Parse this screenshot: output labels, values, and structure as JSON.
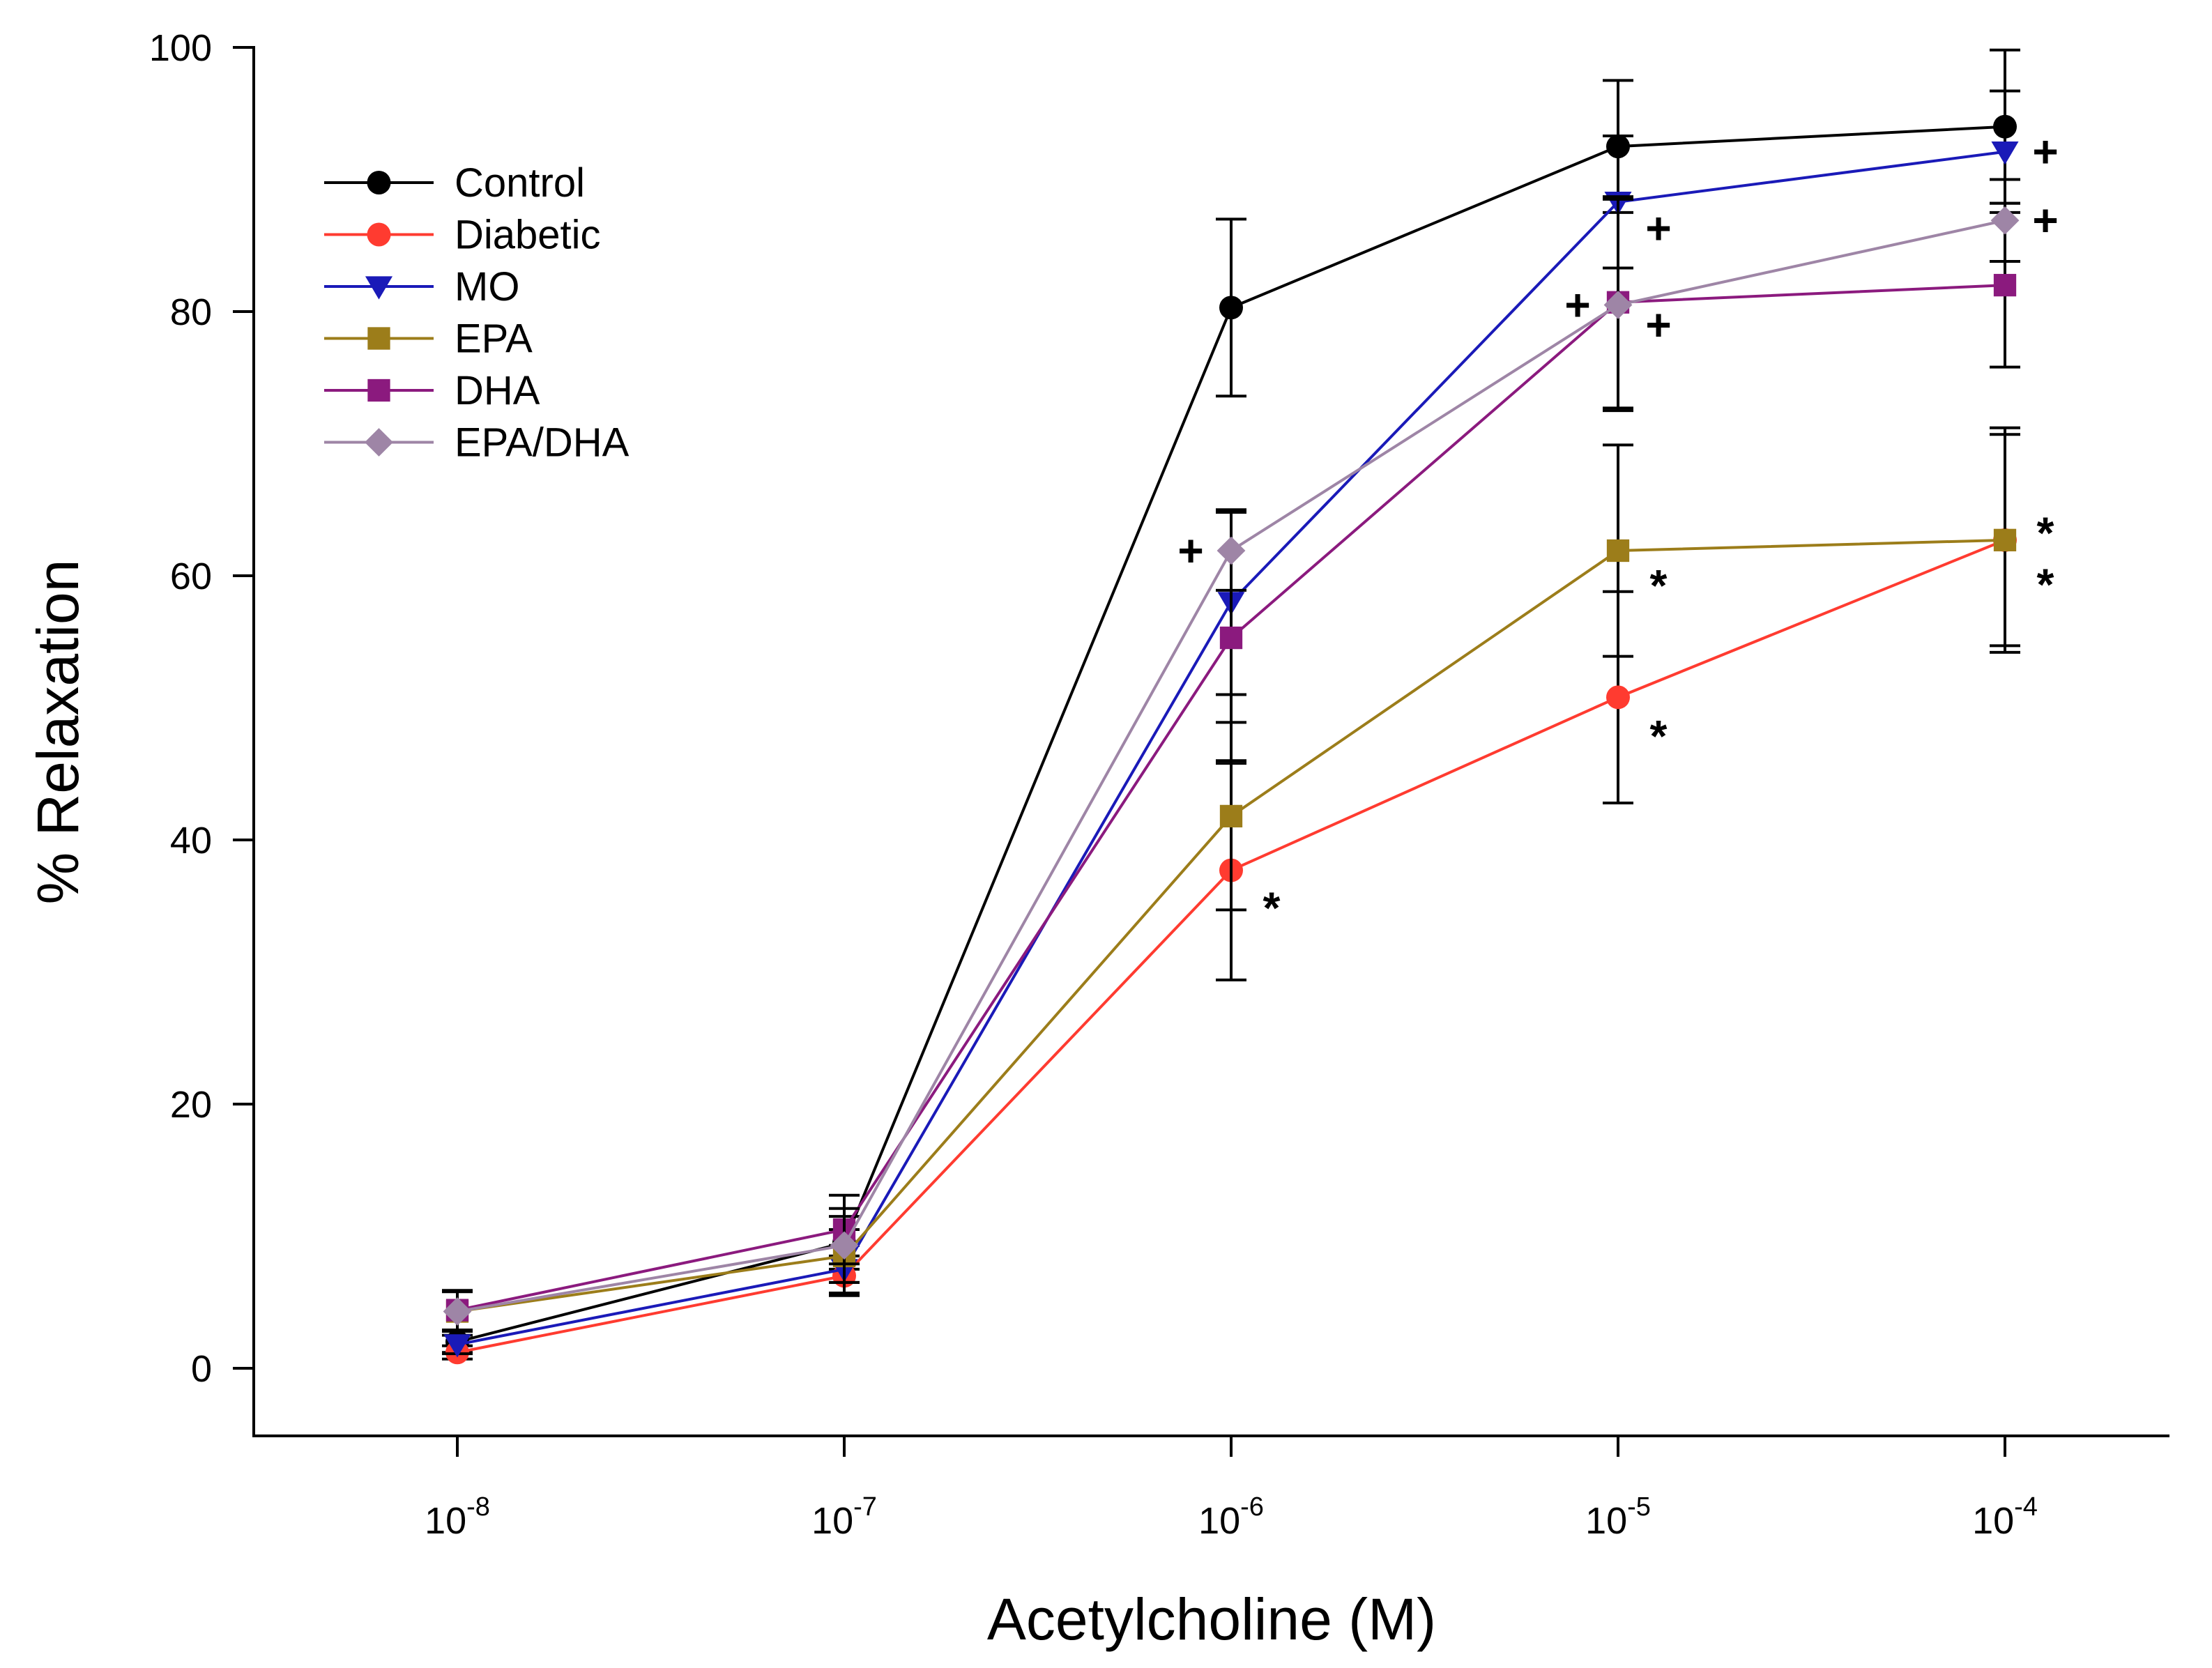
{
  "chart_data": {
    "type": "line",
    "title": "",
    "xlabel": "Acetylcholine (M)",
    "ylabel": "% Relaxation",
    "x_scale": "log",
    "x": [
      1e-08,
      1e-07,
      1e-06,
      1e-05,
      0.0001
    ],
    "x_tick_labels": [
      {
        "base": "10",
        "exp": "-8"
      },
      {
        "base": "10",
        "exp": "-7"
      },
      {
        "base": "10",
        "exp": "-6"
      },
      {
        "base": "10",
        "exp": "-5"
      },
      {
        "base": "10",
        "exp": "-4"
      }
    ],
    "ylim": [
      0,
      100
    ],
    "y_ticks": [
      0,
      20,
      40,
      60,
      80,
      100
    ],
    "grid": false,
    "legend_position": "top-left",
    "series": [
      {
        "name": "Control",
        "color": "#000000",
        "marker": "circle",
        "values": [
          2.0,
          9.5,
          80.3,
          92.5,
          94.0
        ],
        "errors": [
          0.8,
          2.0,
          6.7,
          5.0,
          5.8
        ]
      },
      {
        "name": "Diabetic",
        "color": "#ff3b30",
        "marker": "circle",
        "values": [
          1.2,
          7.0,
          37.7,
          50.8,
          62.7
        ],
        "errors": [
          0.5,
          1.5,
          8.3,
          8.0,
          8.0
        ]
      },
      {
        "name": "MO",
        "color": "#1a1ab8",
        "marker": "triangle-down",
        "values": [
          1.8,
          7.5,
          58.0,
          88.3,
          92.1
        ],
        "errors": [
          0.7,
          1.8,
          7.0,
          5.0,
          4.6
        ]
      },
      {
        "name": "EPA",
        "color": "#9c7d1a",
        "marker": "square",
        "values": [
          4.3,
          8.5,
          41.8,
          61.9,
          62.7
        ],
        "errors": [
          1.5,
          2.0,
          7.1,
          8.0,
          8.5
        ]
      },
      {
        "name": "DHA",
        "color": "#8b1a7e",
        "marker": "square",
        "values": [
          4.4,
          10.5,
          55.3,
          80.7,
          82.0
        ],
        "errors": [
          1.5,
          2.6,
          9.5,
          8.0,
          6.2
        ]
      },
      {
        "name": "EPA/DHA",
        "color": "#9e85a6",
        "marker": "diamond",
        "values": [
          4.3,
          9.3,
          61.9,
          80.5,
          86.9
        ],
        "errors": [
          1.5,
          2.8,
          3.0,
          8.0,
          3.1
        ]
      }
    ],
    "annotations": [
      {
        "text": "+",
        "x": 0.0001,
        "y": 92.1,
        "side": "right"
      },
      {
        "text": "+",
        "x": 1e-05,
        "y": 86.3,
        "side": "right"
      },
      {
        "text": "+",
        "x": 0.0001,
        "y": 86.9,
        "side": "right"
      },
      {
        "text": "+",
        "x": 1e-05,
        "y": 80.5,
        "side": "left"
      },
      {
        "text": "+",
        "x": 1e-05,
        "y": 79.0,
        "side": "right"
      },
      {
        "text": "+",
        "x": 1e-06,
        "y": 61.9,
        "side": "left"
      },
      {
        "text": "*",
        "x": 0.0001,
        "y": 64.2,
        "side": "right"
      },
      {
        "text": "*",
        "x": 0.0001,
        "y": 60.3,
        "side": "right"
      },
      {
        "text": "*",
        "x": 1e-05,
        "y": 60.2,
        "side": "right"
      },
      {
        "text": "*",
        "x": 1e-05,
        "y": 48.8,
        "side": "right"
      },
      {
        "text": "*",
        "x": 1e-06,
        "y": 35.8,
        "side": "right"
      }
    ]
  }
}
